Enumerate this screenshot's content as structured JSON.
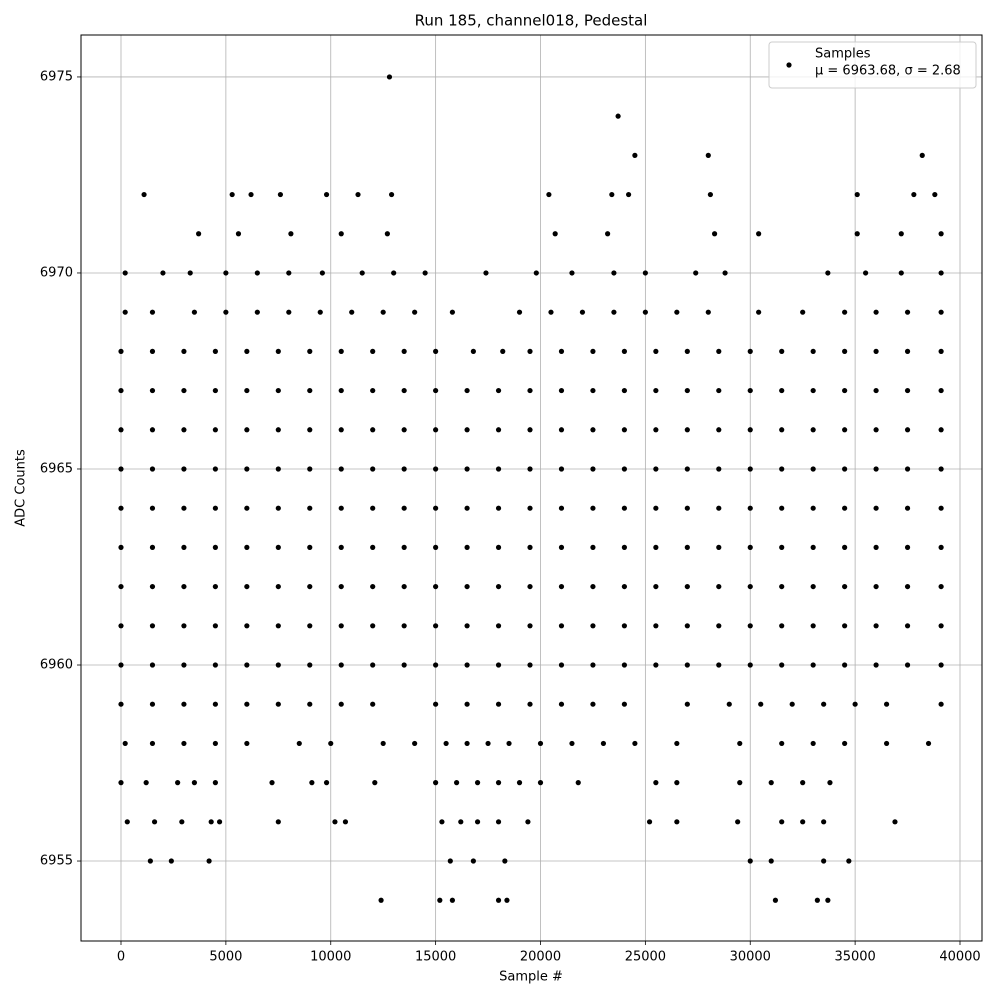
{
  "chart_data": {
    "type": "scatter",
    "title": "Run 185, channel018, Pedestal",
    "x_label": "Sample #",
    "y_label": "ADC Counts",
    "xlim": [
      -1907,
      41049
    ],
    "ylim": [
      6952.96,
      6976.07
    ],
    "xticks": [
      0,
      5000,
      10000,
      15000,
      20000,
      25000,
      30000,
      35000,
      40000
    ],
    "yticks": [
      6955,
      6960,
      6965,
      6970,
      6975
    ],
    "grid": true,
    "legend_loc": "upper right",
    "series": [
      {
        "name": "Samples",
        "label2": "μ = 6963.68, σ = 2.68",
        "color": "#000000",
        "x": [
          12800,
          23700,
          24500,
          28000,
          38200,
          1100,
          5300,
          6200,
          7600,
          9800,
          11300,
          12900,
          20400,
          23400,
          24200,
          28100,
          35100,
          37800,
          38800,
          3700,
          5600,
          8100,
          10500,
          12700,
          20700,
          23200,
          28300,
          30400,
          35100,
          37200,
          39100,
          200,
          2000,
          3300,
          5000,
          6500,
          8000,
          9600,
          11500,
          13000,
          14500,
          17400,
          19800,
          21500,
          23500,
          25000,
          27400,
          28800,
          33700,
          35500,
          37200,
          39100,
          200,
          1500,
          3500,
          5000,
          6500,
          8000,
          9500,
          11000,
          12500,
          14000,
          15800,
          19000,
          20500,
          22000,
          23500,
          25000,
          26500,
          28000,
          30400,
          32500,
          34500,
          36000,
          37500,
          39100,
          0,
          1500,
          3000,
          4500,
          6000,
          7500,
          9000,
          10500,
          12000,
          13500,
          15000,
          16800,
          18200,
          19500,
          21000,
          22500,
          24000,
          25500,
          27000,
          28500,
          30000,
          31500,
          33000,
          34500,
          36000,
          37500,
          39100,
          0,
          1500,
          3000,
          4500,
          6000,
          7500,
          9000,
          10500,
          12000,
          13500,
          15000,
          16500,
          18000,
          19500,
          21000,
          22500,
          24000,
          25500,
          27000,
          28500,
          30000,
          31500,
          33000,
          34500,
          36000,
          37500,
          39100,
          0,
          1500,
          3000,
          4500,
          6000,
          7500,
          9000,
          10500,
          12000,
          13500,
          15000,
          16500,
          18000,
          19500,
          21000,
          22500,
          24000,
          25500,
          27000,
          28500,
          30000,
          31500,
          33000,
          34500,
          36000,
          37500,
          39100,
          0,
          1500,
          3000,
          4500,
          6000,
          7500,
          9000,
          10500,
          12000,
          13500,
          15000,
          16500,
          18000,
          19500,
          21000,
          22500,
          24000,
          25500,
          27000,
          28500,
          30000,
          31500,
          33000,
          34500,
          36000,
          37500,
          39100,
          0,
          1500,
          3000,
          4500,
          6000,
          7500,
          9000,
          10500,
          12000,
          13500,
          15000,
          16500,
          18000,
          19500,
          21000,
          22500,
          24000,
          25500,
          27000,
          28500,
          30000,
          31500,
          33000,
          34500,
          36000,
          37500,
          39100,
          0,
          1500,
          3000,
          4500,
          6000,
          7500,
          9000,
          10500,
          12000,
          13500,
          15000,
          16500,
          18000,
          19500,
          21000,
          22500,
          24000,
          25500,
          27000,
          28500,
          30000,
          31500,
          33000,
          34500,
          36000,
          37500,
          39100,
          0,
          1500,
          3000,
          4500,
          6000,
          7500,
          9000,
          10500,
          12000,
          13500,
          15000,
          16500,
          18000,
          19500,
          21000,
          22500,
          24000,
          25500,
          27000,
          28500,
          30000,
          31500,
          33000,
          34500,
          36000,
          37500,
          39100,
          0,
          1500,
          3000,
          4500,
          6000,
          7500,
          9000,
          10500,
          12000,
          13500,
          15000,
          16500,
          18000,
          19500,
          21000,
          22500,
          24000,
          25500,
          27000,
          28500,
          30000,
          31500,
          33000,
          34500,
          36000,
          37500,
          39100,
          0,
          1500,
          3000,
          4500,
          6000,
          7500,
          9000,
          10500,
          12000,
          13500,
          15000,
          16500,
          18000,
          19500,
          21000,
          22500,
          24000,
          25500,
          27000,
          28500,
          30000,
          31500,
          33000,
          34500,
          36000,
          37500,
          39100,
          0,
          1500,
          3000,
          4500,
          6000,
          7500,
          9000,
          10500,
          12000,
          15000,
          16500,
          18000,
          19500,
          21000,
          22500,
          24000,
          27000,
          29000,
          30500,
          32000,
          33500,
          35000,
          36500,
          39100,
          200,
          1500,
          3000,
          4500,
          6000,
          8500,
          10000,
          12500,
          14000,
          15500,
          16500,
          17500,
          18500,
          20000,
          21500,
          23000,
          24500,
          26500,
          29500,
          31500,
          33000,
          34500,
          36500,
          38500,
          0,
          1200,
          2700,
          3500,
          4500,
          7200,
          9100,
          9800,
          12100,
          15000,
          16000,
          17000,
          18000,
          19000,
          20000,
          21800,
          25500,
          26500,
          29500,
          31000,
          32500,
          33800,
          300,
          1600,
          2900,
          4300,
          4700,
          7500,
          10200,
          10700,
          15300,
          16200,
          17000,
          18000,
          19400,
          25200,
          26500,
          29400,
          31500,
          32500,
          33500,
          36900,
          1400,
          2400,
          4200,
          15700,
          16800,
          18300,
          30000,
          31000,
          33500,
          34700,
          12400,
          15200,
          15800,
          18000,
          18400,
          31200,
          33200,
          33700
        ],
        "values": [
          6975,
          6974,
          6973,
          6973,
          6973,
          6972,
          6972,
          6972,
          6972,
          6972,
          6972,
          6972,
          6972,
          6972,
          6972,
          6972,
          6972,
          6972,
          6972,
          6971,
          6971,
          6971,
          6971,
          6971,
          6971,
          6971,
          6971,
          6971,
          6971,
          6971,
          6971,
          6970,
          6970,
          6970,
          6970,
          6970,
          6970,
          6970,
          6970,
          6970,
          6970,
          6970,
          6970,
          6970,
          6970,
          6970,
          6970,
          6970,
          6970,
          6970,
          6970,
          6970,
          6969,
          6969,
          6969,
          6969,
          6969,
          6969,
          6969,
          6969,
          6969,
          6969,
          6969,
          6969,
          6969,
          6969,
          6969,
          6969,
          6969,
          6969,
          6969,
          6969,
          6969,
          6969,
          6969,
          6969,
          6968,
          6968,
          6968,
          6968,
          6968,
          6968,
          6968,
          6968,
          6968,
          6968,
          6968,
          6968,
          6968,
          6968,
          6968,
          6968,
          6968,
          6968,
          6968,
          6968,
          6968,
          6968,
          6968,
          6968,
          6968,
          6968,
          6968,
          6967,
          6967,
          6967,
          6967,
          6967,
          6967,
          6967,
          6967,
          6967,
          6967,
          6967,
          6967,
          6967,
          6967,
          6967,
          6967,
          6967,
          6967,
          6967,
          6967,
          6967,
          6967,
          6967,
          6967,
          6967,
          6967,
          6967,
          6966,
          6966,
          6966,
          6966,
          6966,
          6966,
          6966,
          6966,
          6966,
          6966,
          6966,
          6966,
          6966,
          6966,
          6966,
          6966,
          6966,
          6966,
          6966,
          6966,
          6966,
          6966,
          6966,
          6966,
          6966,
          6966,
          6966,
          6965,
          6965,
          6965,
          6965,
          6965,
          6965,
          6965,
          6965,
          6965,
          6965,
          6965,
          6965,
          6965,
          6965,
          6965,
          6965,
          6965,
          6965,
          6965,
          6965,
          6965,
          6965,
          6965,
          6965,
          6965,
          6965,
          6965,
          6964,
          6964,
          6964,
          6964,
          6964,
          6964,
          6964,
          6964,
          6964,
          6964,
          6964,
          6964,
          6964,
          6964,
          6964,
          6964,
          6964,
          6964,
          6964,
          6964,
          6964,
          6964,
          6964,
          6964,
          6964,
          6964,
          6964,
          6963,
          6963,
          6963,
          6963,
          6963,
          6963,
          6963,
          6963,
          6963,
          6963,
          6963,
          6963,
          6963,
          6963,
          6963,
          6963,
          6963,
          6963,
          6963,
          6963,
          6963,
          6963,
          6963,
          6963,
          6963,
          6963,
          6963,
          6962,
          6962,
          6962,
          6962,
          6962,
          6962,
          6962,
          6962,
          6962,
          6962,
          6962,
          6962,
          6962,
          6962,
          6962,
          6962,
          6962,
          6962,
          6962,
          6962,
          6962,
          6962,
          6962,
          6962,
          6962,
          6962,
          6962,
          6961,
          6961,
          6961,
          6961,
          6961,
          6961,
          6961,
          6961,
          6961,
          6961,
          6961,
          6961,
          6961,
          6961,
          6961,
          6961,
          6961,
          6961,
          6961,
          6961,
          6961,
          6961,
          6961,
          6961,
          6961,
          6961,
          6961,
          6960,
          6960,
          6960,
          6960,
          6960,
          6960,
          6960,
          6960,
          6960,
          6960,
          6960,
          6960,
          6960,
          6960,
          6960,
          6960,
          6960,
          6960,
          6960,
          6960,
          6960,
          6960,
          6960,
          6960,
          6960,
          6960,
          6960,
          6959,
          6959,
          6959,
          6959,
          6959,
          6959,
          6959,
          6959,
          6959,
          6959,
          6959,
          6959,
          6959,
          6959,
          6959,
          6959,
          6959,
          6959,
          6959,
          6959,
          6959,
          6959,
          6959,
          6959,
          6958,
          6958,
          6958,
          6958,
          6958,
          6958,
          6958,
          6958,
          6958,
          6958,
          6958,
          6958,
          6958,
          6958,
          6958,
          6958,
          6958,
          6958,
          6958,
          6958,
          6958,
          6958,
          6958,
          6958,
          6957,
          6957,
          6957,
          6957,
          6957,
          6957,
          6957,
          6957,
          6957,
          6957,
          6957,
          6957,
          6957,
          6957,
          6957,
          6957,
          6957,
          6957,
          6957,
          6957,
          6957,
          6957,
          6956,
          6956,
          6956,
          6956,
          6956,
          6956,
          6956,
          6956,
          6956,
          6956,
          6956,
          6956,
          6956,
          6956,
          6956,
          6956,
          6956,
          6956,
          6956,
          6956,
          6955,
          6955,
          6955,
          6955,
          6955,
          6955,
          6955,
          6955,
          6955,
          6955,
          6954,
          6954,
          6954,
          6954,
          6954,
          6954,
          6954,
          6954
        ]
      }
    ]
  }
}
